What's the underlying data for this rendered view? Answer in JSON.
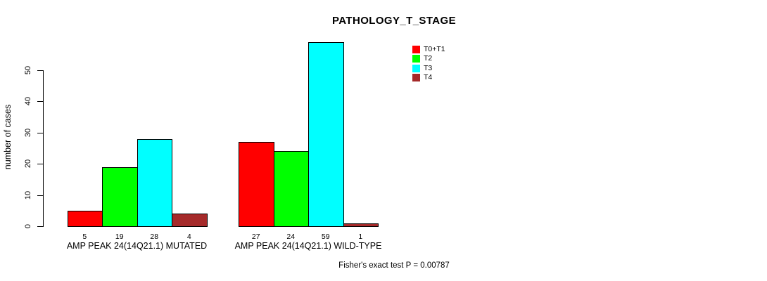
{
  "chart_data": {
    "type": "bar",
    "title": "PATHOLOGY_T_STAGE",
    "ylabel": "number of cases",
    "xlabel": "",
    "ylim": [
      0,
      59
    ],
    "yticks": [
      0,
      10,
      20,
      30,
      40,
      50
    ],
    "grid": false,
    "legend_position": "top-right",
    "categories": [
      "AMP PEAK 24(14Q21.1) MUTATED",
      "AMP PEAK 24(14Q21.1) WILD-TYPE"
    ],
    "series": [
      {
        "name": "T0+T1",
        "color": "#FF0000",
        "values": [
          5,
          27
        ]
      },
      {
        "name": "T2",
        "color": "#00FF00",
        "values": [
          19,
          24
        ]
      },
      {
        "name": "T3",
        "color": "#00FFFF",
        "values": [
          28,
          59
        ]
      },
      {
        "name": "T4",
        "color": "#A52A2A",
        "values": [
          4,
          1
        ]
      }
    ],
    "bar_value_labels": [
      [
        5,
        19,
        28,
        4
      ],
      [
        27,
        24,
        59,
        1
      ]
    ],
    "annotation": "Fisher's exact test P = 0.00787"
  }
}
